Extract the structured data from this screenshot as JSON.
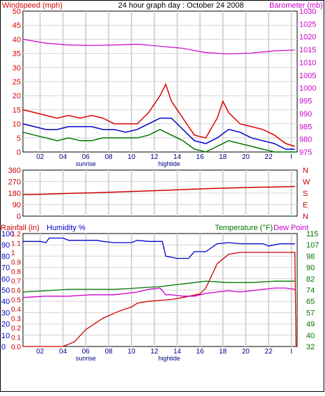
{
  "title": "24 hour graph day : October 24 2008",
  "colors": {
    "wind": "#dd0000",
    "gust_avg": "#0000cc",
    "wind_low": "#007700",
    "baro": "#cc00cc",
    "direction": "#cc0000",
    "rain": "#cc0000",
    "humidity": "#0000cc",
    "temperature": "#007700",
    "dewpoint": "#cc00cc",
    "grid": "#d4d4d4"
  },
  "x_ticks": [
    "02",
    "04",
    "06",
    "08",
    "10",
    "12",
    "14",
    "16",
    "18",
    "20",
    "22",
    "I"
  ],
  "markers": {
    "sunrise": "sunrise",
    "hightide": "hightide"
  },
  "chart_data": [
    {
      "type": "line",
      "name": "wind-barometer",
      "left_label": "Windspeed (mph)",
      "right_label": "Barometer (mb)",
      "left_ticks": [
        "50",
        "45",
        "40",
        "35",
        "30",
        "25",
        "20",
        "15",
        "10",
        "5",
        "0"
      ],
      "right_ticks": [
        "1030",
        "1025",
        "1020",
        "1015",
        "1010",
        "1005",
        "1000",
        "995",
        "990",
        "985",
        "980",
        "975"
      ],
      "left_range": [
        0,
        50
      ],
      "right_range": [
        975,
        1030
      ],
      "x_range": [
        0,
        24
      ],
      "series": [
        {
          "key": "windspeed",
          "color_key": "wind",
          "x": [
            0,
            1,
            2,
            3,
            4,
            5,
            6,
            7,
            8,
            9,
            10,
            11,
            12,
            12.5,
            13,
            14,
            15,
            16,
            17,
            17.5,
            18,
            19,
            20,
            21,
            22,
            23,
            23.8
          ],
          "y": [
            15,
            14,
            13,
            12,
            13,
            12,
            13,
            12,
            10,
            10,
            10,
            14,
            20,
            24,
            18,
            12,
            6,
            5,
            12,
            18,
            14,
            10,
            9,
            8,
            6,
            3,
            2
          ]
        },
        {
          "key": "gust_avg",
          "color_key": "gust_avg",
          "x": [
            0,
            1,
            2,
            3,
            4,
            5,
            6,
            7,
            8,
            9,
            10,
            11,
            12,
            13,
            14,
            15,
            16,
            17,
            18,
            19,
            20,
            21,
            22,
            23,
            23.8
          ],
          "y": [
            10,
            9,
            8,
            8,
            9,
            9,
            9,
            8,
            8,
            7,
            8,
            10,
            12,
            12,
            8,
            4,
            3,
            5,
            8,
            7,
            5,
            4,
            3,
            1,
            1
          ]
        },
        {
          "key": "wind_low",
          "color_key": "wind_low",
          "x": [
            0,
            1,
            2,
            3,
            4,
            5,
            6,
            7,
            8,
            9,
            10,
            11,
            12,
            13,
            14,
            15,
            16,
            17,
            18,
            19,
            20,
            21,
            22,
            23,
            23.8
          ],
          "y": [
            7,
            6,
            5,
            4,
            5,
            4,
            4,
            5,
            5,
            5,
            5,
            6,
            8,
            6,
            4,
            1,
            0,
            2,
            4,
            3,
            2,
            1,
            0,
            0,
            0
          ]
        },
        {
          "key": "barometer",
          "color_key": "baro",
          "axis": "right",
          "x": [
            0,
            2,
            4,
            6,
            8,
            10,
            12,
            14,
            16,
            18,
            20,
            22,
            23.8
          ],
          "y": [
            1019.0,
            1017.5,
            1016.8,
            1016.6,
            1016.8,
            1017.1,
            1016.3,
            1015.5,
            1013.8,
            1013.3,
            1013.6,
            1014.5,
            1014.8
          ]
        }
      ]
    },
    {
      "type": "line",
      "name": "wind-direction",
      "left_ticks": [
        "360",
        "270",
        "180",
        "90",
        "0"
      ],
      "right_ticks": [
        "N",
        "W",
        "S",
        "E",
        "N"
      ],
      "left_range": [
        0,
        360
      ],
      "x_range": [
        0,
        24
      ],
      "series": [
        {
          "key": "direction",
          "color_key": "direction",
          "x": [
            0,
            2,
            4,
            6,
            8,
            10,
            12,
            14,
            16,
            18,
            20,
            22,
            23.8
          ],
          "y": [
            168,
            172,
            178,
            182,
            188,
            194,
            200,
            208,
            215,
            220,
            225,
            228,
            232
          ]
        }
      ]
    },
    {
      "type": "line",
      "name": "rain-humidity-temperature",
      "left_label_1": "Rainfall (in)",
      "left_label_2": "Humidity %",
      "right_label_1": "Temperature (°F)",
      "right_label_2": "Dew Point",
      "rain_ticks": [
        "1.2",
        "1.1",
        "1",
        "0.9",
        "0.8",
        "0.7",
        "0.6",
        "0.5",
        "0.4",
        "0.3",
        "0.2",
        "0.1",
        "0.0"
      ],
      "humidity_ticks": [
        "100",
        "90",
        "80",
        "70",
        "60",
        "50",
        "40",
        "30",
        "20",
        "10",
        "0"
      ],
      "temp_ticks": [
        "115",
        "107",
        "98",
        "90",
        "82",
        "74",
        "65",
        "57",
        "49",
        "40",
        "32"
      ],
      "rain_range": [
        0,
        1.2
      ],
      "humidity_range": [
        0,
        100
      ],
      "temp_range": [
        32,
        115
      ],
      "x_range": [
        0,
        24
      ],
      "series": [
        {
          "key": "rainfall",
          "color_key": "rain",
          "axis": "rain",
          "x": [
            0,
            3.5,
            4.5,
            5.5,
            7,
            8.5,
            9.5,
            10,
            11,
            12,
            13,
            14,
            15.5,
            16,
            17,
            18,
            19,
            20,
            22,
            23.8,
            23.9
          ],
          "y": [
            0,
            0,
            0.05,
            0.18,
            0.3,
            0.38,
            0.42,
            0.46,
            0.48,
            0.49,
            0.5,
            0.52,
            0.56,
            0.62,
            0.88,
            0.98,
            1.0,
            1.0,
            1.0,
            1.0,
            0.0
          ]
        },
        {
          "key": "humidity",
          "color_key": "humidity",
          "axis": "humidity",
          "x": [
            0,
            1.5,
            2,
            2.3,
            3.5,
            4,
            6.5,
            7,
            8,
            9.5,
            10,
            11,
            12.2,
            12.5,
            13.5,
            14.5,
            15,
            16,
            17,
            18,
            19,
            21,
            21.5,
            22.5,
            23,
            23.8
          ],
          "y": [
            93,
            93,
            92,
            96,
            96,
            94,
            94,
            93,
            92,
            92,
            94,
            93,
            93,
            80,
            78,
            78,
            84,
            84,
            91,
            92,
            91,
            91,
            89,
            91,
            91,
            91
          ]
        },
        {
          "key": "temperature",
          "color_key": "temperature",
          "axis": "temp",
          "x": [
            0,
            2,
            4,
            6,
            8,
            10,
            12,
            13,
            14,
            16,
            18,
            20,
            22,
            23.8
          ],
          "y": [
            72,
            73,
            74,
            74,
            74,
            75,
            76,
            77,
            78,
            80,
            79,
            79,
            80,
            80
          ]
        },
        {
          "key": "dewpoint",
          "color_key": "dewpoint",
          "axis": "temp",
          "x": [
            0,
            2,
            4,
            6,
            8,
            10,
            11,
            12,
            12.5,
            13,
            14,
            15,
            16,
            17,
            18,
            19,
            20,
            21,
            22,
            23,
            23.8
          ],
          "y": [
            68,
            69,
            69,
            70,
            70,
            72,
            74,
            75,
            70,
            70,
            69,
            69,
            71,
            72,
            73,
            72,
            73,
            74,
            75,
            75,
            74
          ]
        }
      ]
    }
  ]
}
